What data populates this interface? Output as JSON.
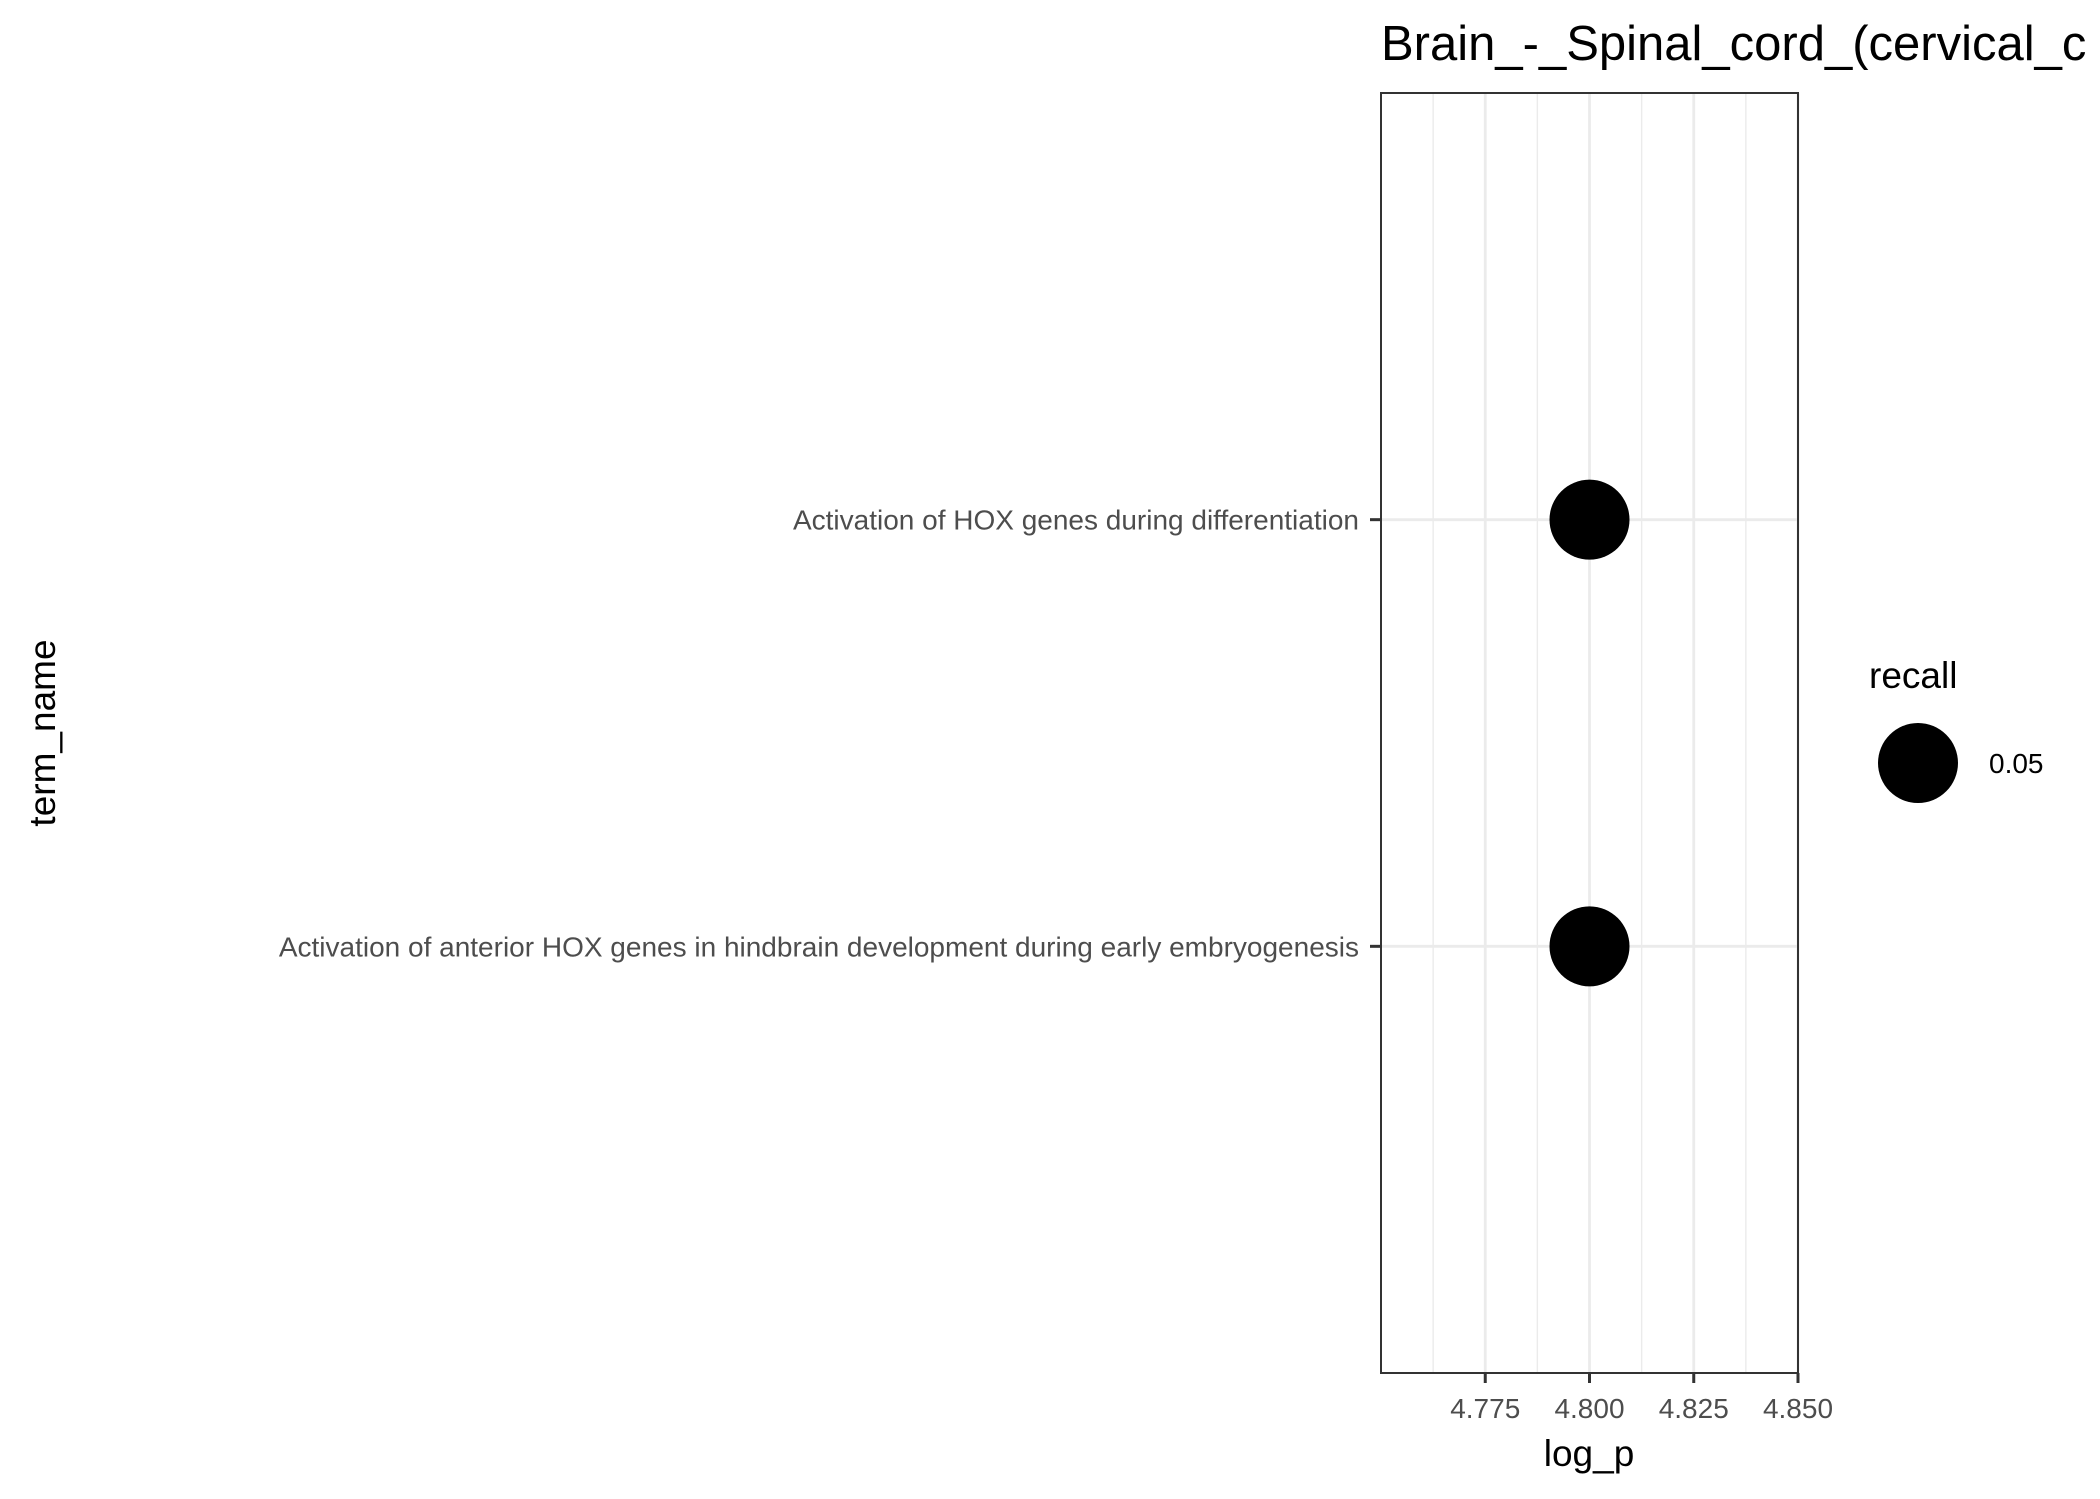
{
  "chart_data": {
    "type": "scatter",
    "title": "Brain_-_Spinal_cord_(cervical_c",
    "xlabel": "log_p",
    "ylabel": "term_name",
    "xlim": [
      4.75,
      4.85
    ],
    "x_ticks": [
      "4.775",
      "4.800",
      "4.825",
      "4.850"
    ],
    "grid": true,
    "categories": [
      "Activation of HOX genes during differentiation",
      "Activation of anterior HOX genes in hindbrain development during early embryogenesis"
    ],
    "points": [
      {
        "term_name": "Activation of HOX genes during differentiation",
        "log_p": 4.8,
        "recall": 0.05
      },
      {
        "term_name": "Activation of anterior HOX genes in hindbrain development during early embryogenesis",
        "log_p": 4.8,
        "recall": 0.05
      }
    ],
    "legend": {
      "title": "recall",
      "placement": "right",
      "entries": [
        {
          "label": "0.05",
          "value": 0.05
        }
      ]
    },
    "point_color": "#000000",
    "grid_color": "#ebebeb",
    "panel_border_color": "#333333"
  }
}
